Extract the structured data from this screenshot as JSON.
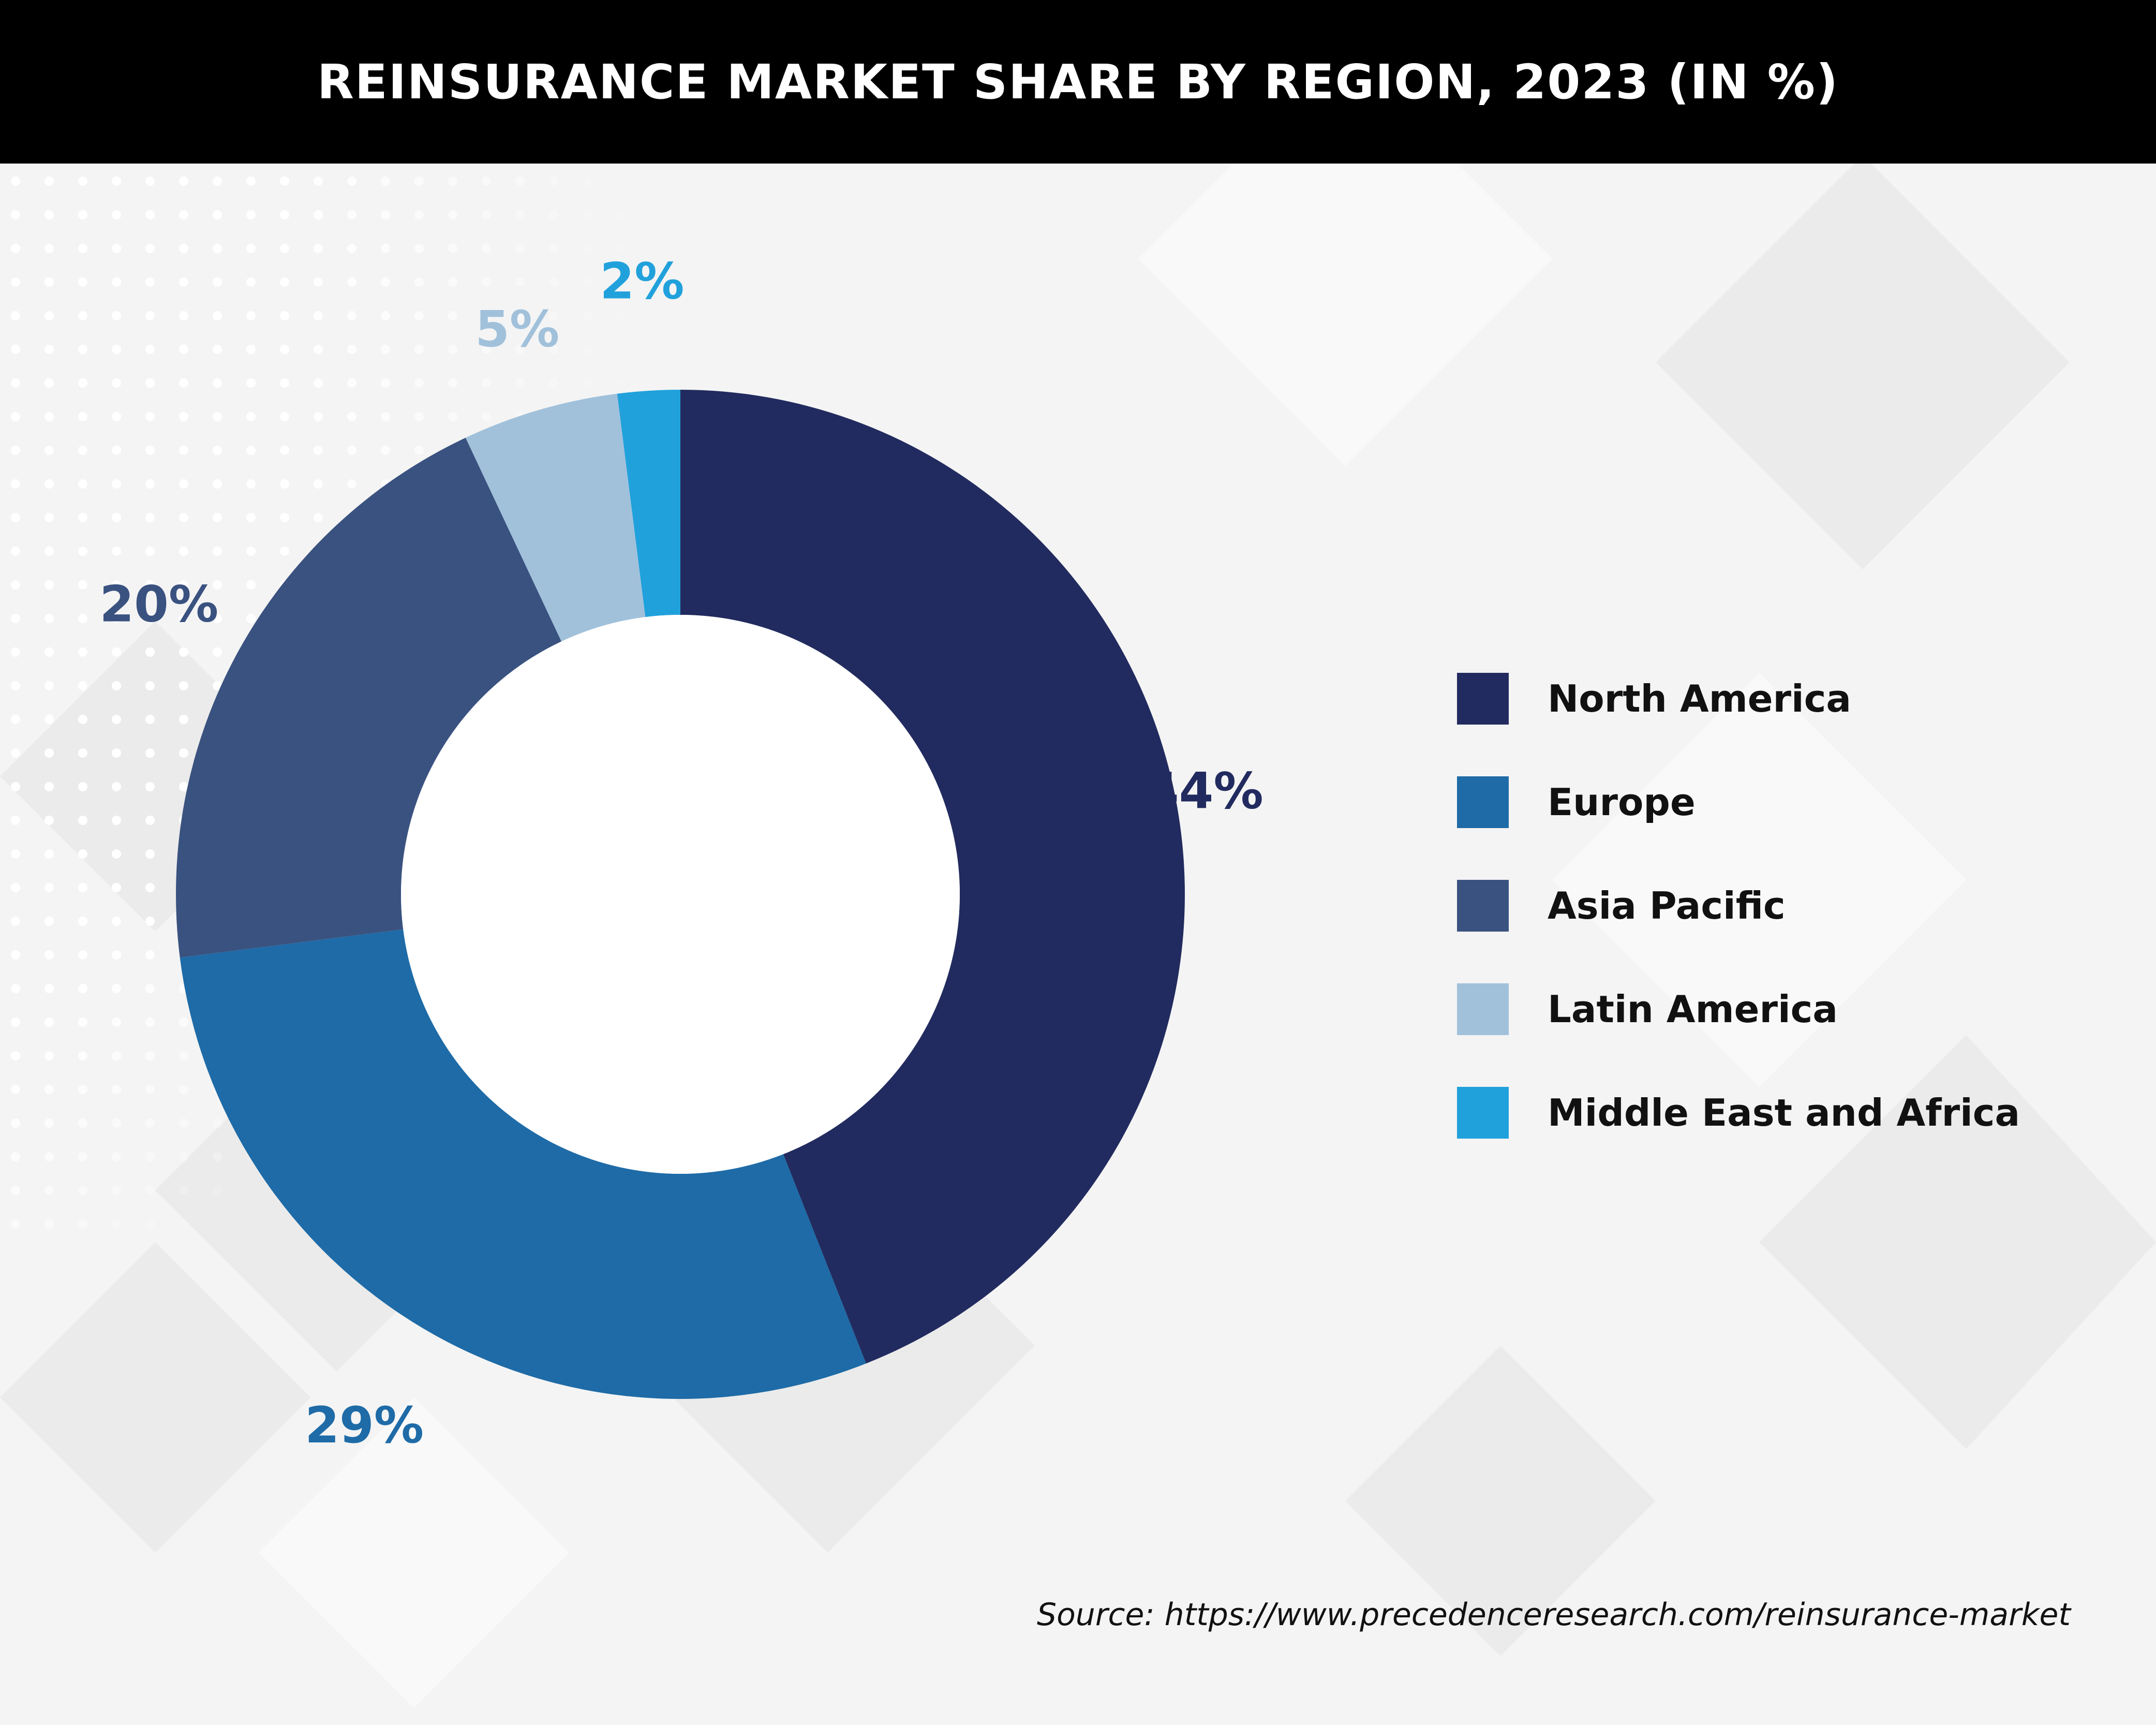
{
  "title": "REINSURANCE MARKET SHARE BY REGION, 2023 (IN %)",
  "source": "Source: https://www.precedenceresearch.com/reinsurance-market",
  "colors": {
    "background": "#f4f4f4",
    "title_bar": "#000000",
    "title_text": "#ffffff"
  },
  "chart_data": {
    "type": "pie",
    "variant": "donut",
    "title": "REINSURANCE MARKET SHARE BY REGION, 2023 (IN %)",
    "legend_position": "right",
    "start": "top, clockwise",
    "slices": [
      {
        "name": "North America",
        "value": 44,
        "label": "44%",
        "color": "#222b5f"
      },
      {
        "name": "Europe",
        "value": 29,
        "label": "29%",
        "color": "#1e6ba7"
      },
      {
        "name": "Asia Pacific",
        "value": 20,
        "label": "20%",
        "color": "#3a5280"
      },
      {
        "name": "Latin America",
        "value": 5,
        "label": "5%",
        "color": "#a1c1db"
      },
      {
        "name": "Middle East and Africa",
        "value": 2,
        "label": "2%",
        "color": "#21a1dc"
      }
    ]
  }
}
